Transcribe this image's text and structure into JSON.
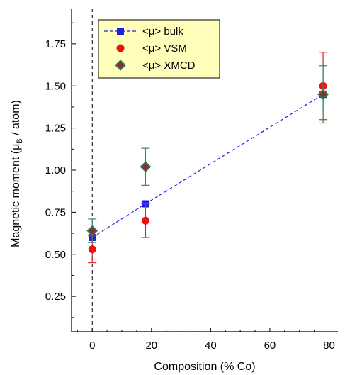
{
  "chart_data": {
    "type": "scatter",
    "xlabel": "Composition (% Co)",
    "ylabel_main": "Magnetic moment (μ",
    "ylabel_sub": "B",
    "ylabel_tail": " / atom)",
    "xlim": [
      -7,
      83
    ],
    "ylim": [
      0.04,
      1.96
    ],
    "x_ticks": [
      0,
      20,
      40,
      60,
      80
    ],
    "y_ticks": [
      0.25,
      0.5,
      0.75,
      1.0,
      1.25,
      1.5,
      1.75
    ],
    "x_tick_labels": [
      "0",
      "20",
      "40",
      "60",
      "80"
    ],
    "y_tick_labels": [
      "0.25",
      "0.50",
      "0.75",
      "1.00",
      "1.25",
      "1.50",
      "1.75"
    ],
    "vline_x": 0,
    "series": [
      {
        "name": "<μ> bulk",
        "marker": "square",
        "color": "#1f1fe0",
        "line": "dashed",
        "points": [
          {
            "x": 0,
            "y": 0.6
          },
          {
            "x": 18,
            "y": 0.8
          },
          {
            "x": 78,
            "y": 1.45
          }
        ]
      },
      {
        "name": "<μ> VSM",
        "marker": "circle",
        "color": "#ee1111",
        "error_color": "#dd2222",
        "points": [
          {
            "x": 0,
            "y": 0.53,
            "err": 0.08
          },
          {
            "x": 18,
            "y": 0.7,
            "err": 0.1
          },
          {
            "x": 78,
            "y": 1.5,
            "err": 0.2
          }
        ]
      },
      {
        "name": "<μ> XMCD",
        "marker": "diamond",
        "color": "#8b2a3a",
        "edge_color": "#2e7d4a",
        "error_color": "#2e8b57",
        "points": [
          {
            "x": 0,
            "y": 0.64,
            "err": 0.07
          },
          {
            "x": 18,
            "y": 1.02,
            "err": 0.11
          },
          {
            "x": 78,
            "y": 1.45,
            "err": 0.17
          }
        ]
      }
    ],
    "legend": {
      "position": "top-left",
      "background": "#ffffbb"
    }
  }
}
